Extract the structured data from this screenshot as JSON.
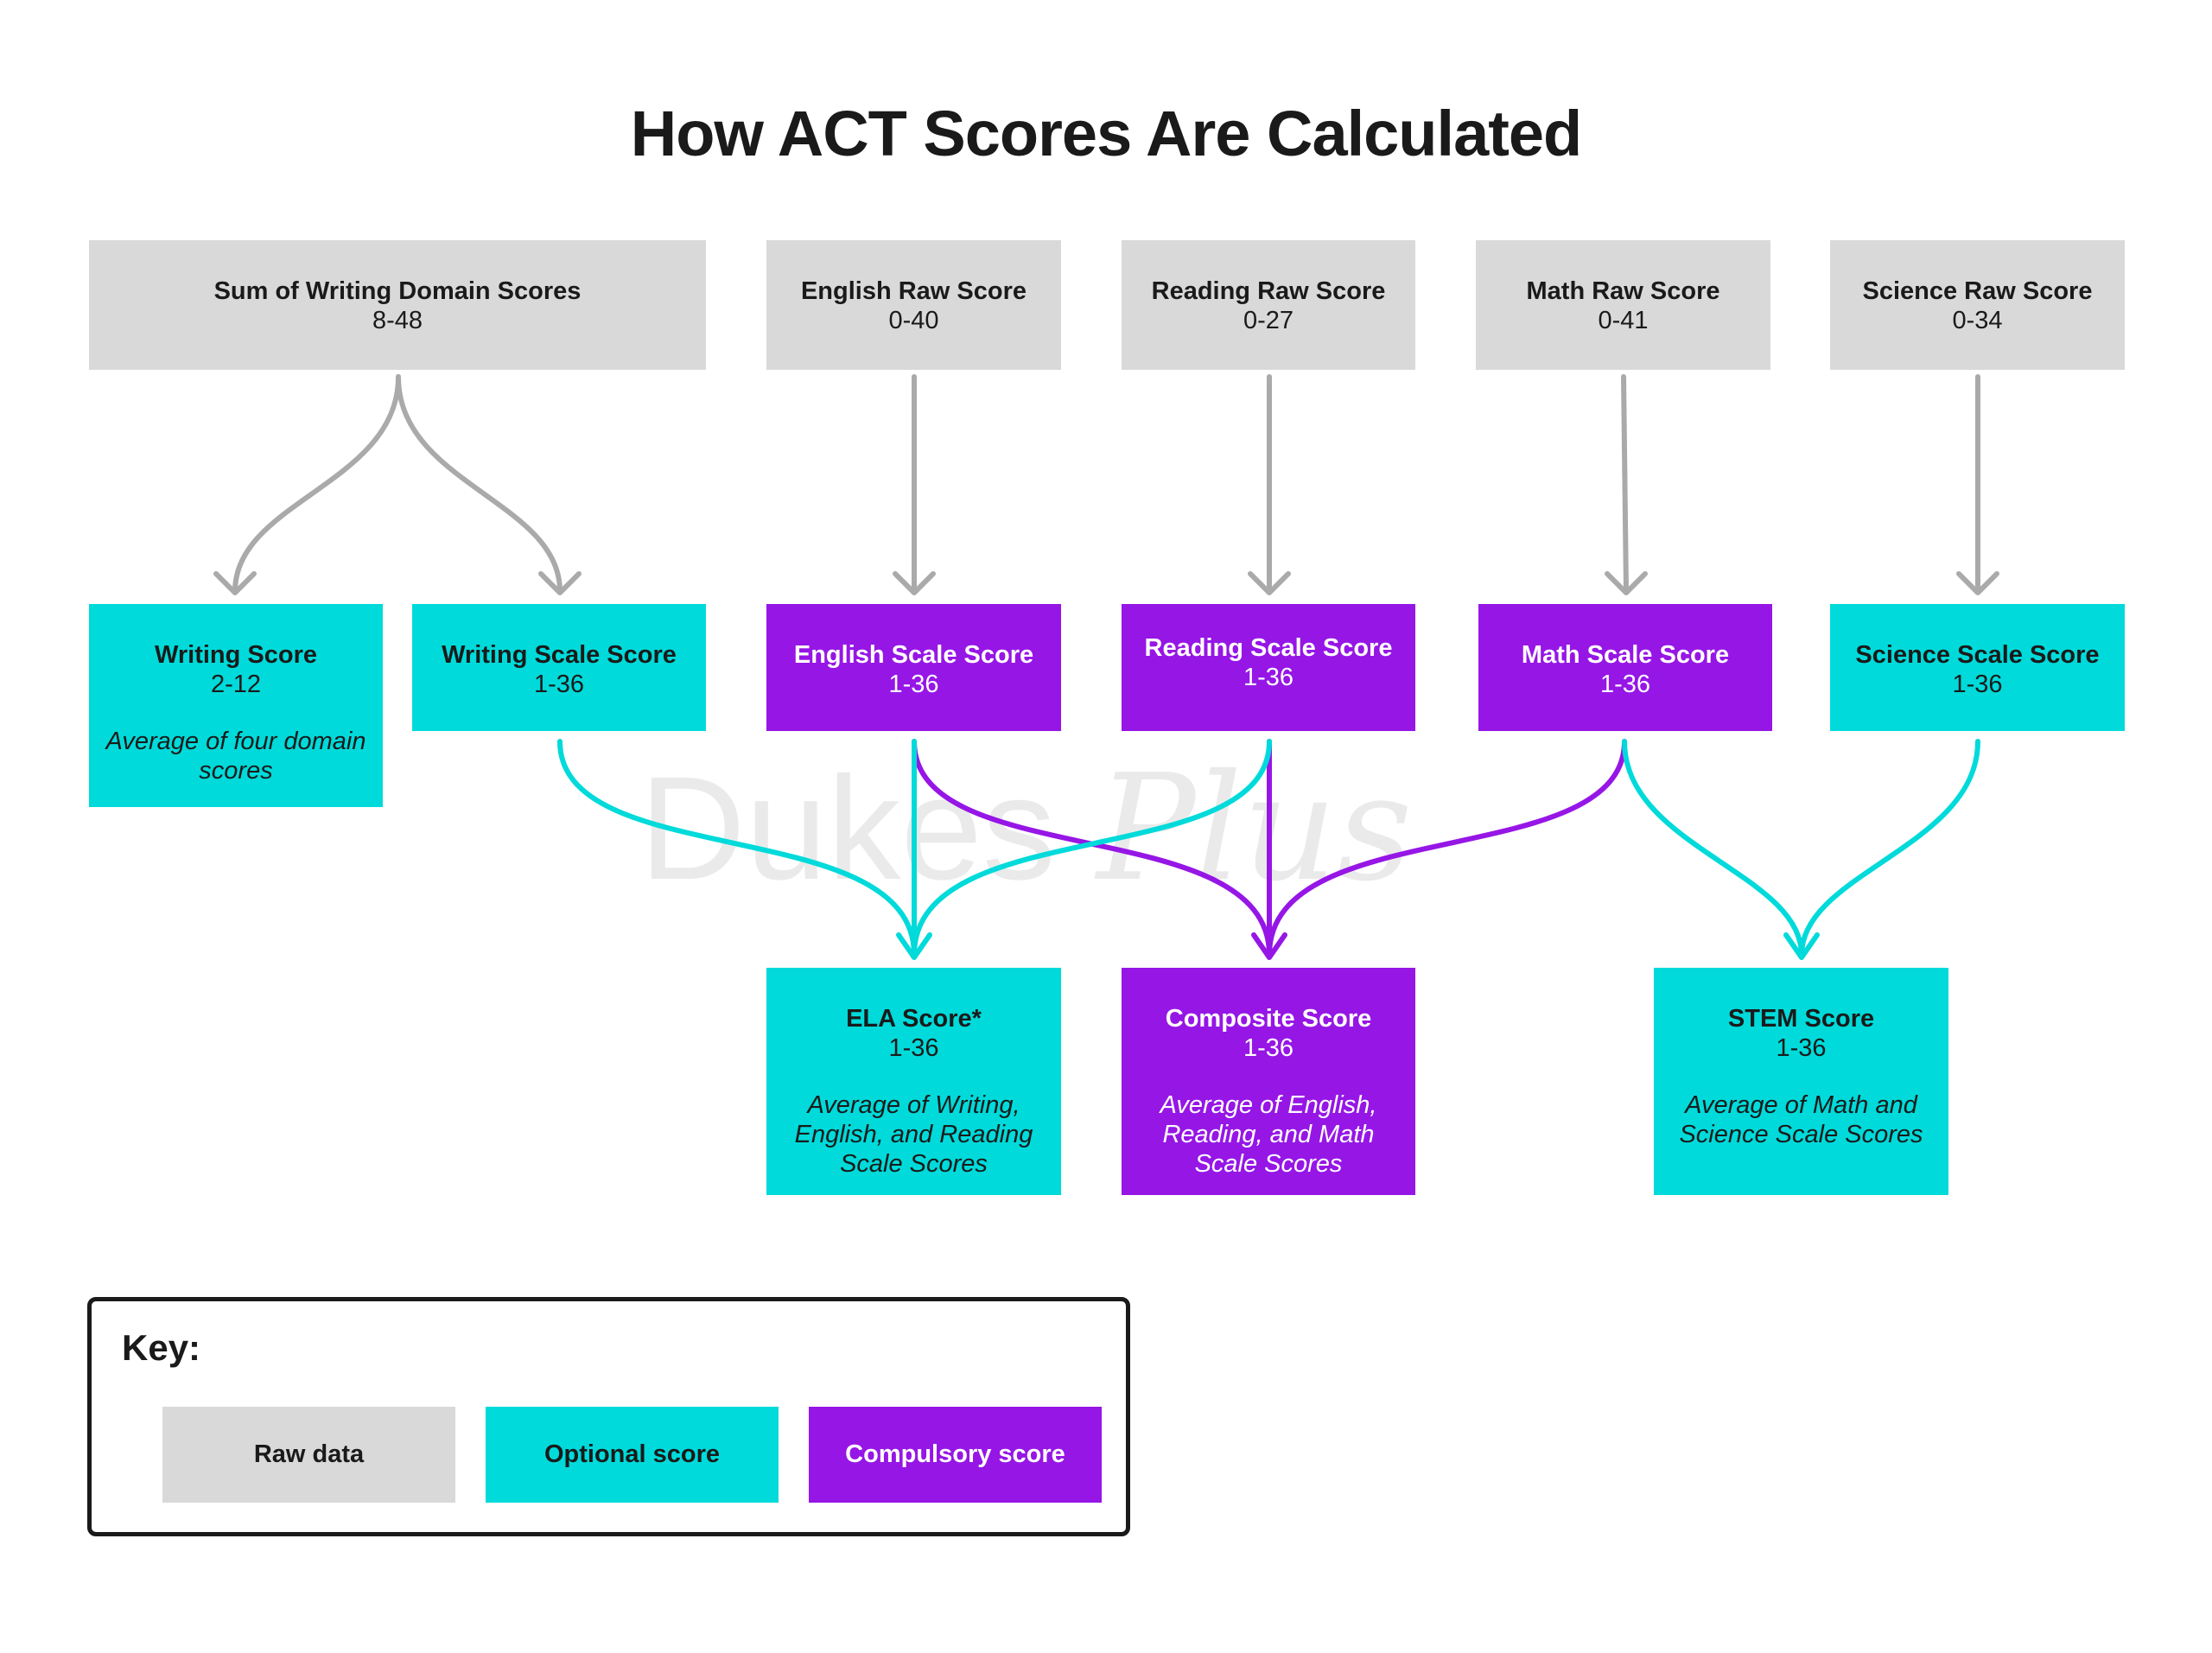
{
  "title": "How ACT Scores Are Calculated",
  "watermark": {
    "word1": "Dukes",
    "word2": "Plus"
  },
  "colors": {
    "raw": "#d9d9d9",
    "optional": "#00dada",
    "compulsory": "#9616e6",
    "arrow_gray": "#aaaaaa"
  },
  "raw": [
    {
      "title": "Sum of Writing Domain Scores",
      "range": "8-48"
    },
    {
      "title": "English Raw Score",
      "range": "0-40"
    },
    {
      "title": "Reading Raw Score",
      "range": "0-27"
    },
    {
      "title": "Math Raw Score",
      "range": "0-41"
    },
    {
      "title": "Science Raw Score",
      "range": "0-34"
    }
  ],
  "scale": [
    {
      "title": "Writing Score",
      "range": "2-12",
      "desc": "Average of four domain scores",
      "type": "optional"
    },
    {
      "title": "Writing Scale Score",
      "range": "1-36",
      "type": "optional"
    },
    {
      "title": "English Scale Score",
      "range": "1-36",
      "type": "compulsory"
    },
    {
      "title": "Reading Scale Score",
      "range": "1-36",
      "type": "compulsory"
    },
    {
      "title": "Math Scale Score",
      "range": "1-36",
      "type": "compulsory"
    },
    {
      "title": "Science Scale Score",
      "range": "1-36",
      "type": "optional"
    }
  ],
  "final": [
    {
      "title": "ELA Score*",
      "range": "1-36",
      "desc": "Average of Writing, English, and Reading Scale Scores",
      "type": "optional"
    },
    {
      "title": "Composite Score",
      "range": "1-36",
      "desc": "Average of English, Reading, and Math Scale Scores",
      "type": "compulsory"
    },
    {
      "title": "STEM Score",
      "range": "1-36",
      "desc": "Average of Math and Science Scale Scores",
      "type": "optional"
    }
  ],
  "key": {
    "title": "Key:",
    "items": [
      {
        "label": "Raw data"
      },
      {
        "label": "Optional score"
      },
      {
        "label": "Compulsory score"
      }
    ]
  }
}
